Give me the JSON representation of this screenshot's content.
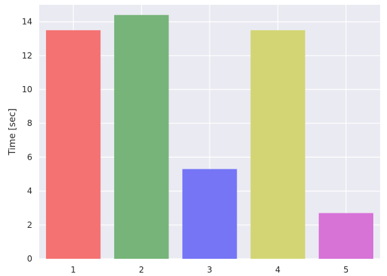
{
  "chart_data": {
    "type": "bar",
    "categories": [
      "1",
      "2",
      "3",
      "4",
      "5"
    ],
    "values": [
      13.5,
      14.4,
      5.3,
      13.5,
      2.7
    ],
    "colors": [
      "#f47272",
      "#76b479",
      "#7575f6",
      "#d3d574",
      "#d772d7"
    ],
    "title": "",
    "xlabel": "",
    "ylabel": "Time [sec]",
    "ylim": [
      0,
      15
    ],
    "yticks": [
      "0",
      "2",
      "4",
      "6",
      "8",
      "10",
      "12",
      "14"
    ],
    "grid": true,
    "background": "#eaeaf2",
    "gridColor": "#ffffff"
  }
}
